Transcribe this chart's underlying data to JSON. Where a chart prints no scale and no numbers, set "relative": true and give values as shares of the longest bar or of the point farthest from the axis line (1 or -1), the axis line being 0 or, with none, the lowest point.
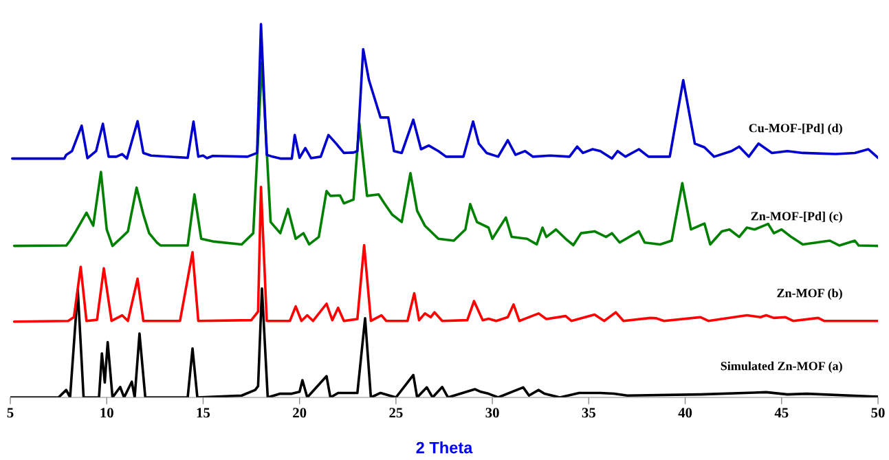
{
  "chart_data": {
    "type": "line",
    "xlabel": "2 Theta",
    "relative": true,
    "xlim": [
      5,
      50
    ],
    "xticks": [
      5,
      10,
      15,
      20,
      25,
      30,
      35,
      40,
      45,
      50
    ],
    "grid": false,
    "legend": false,
    "marker": "none",
    "line_style": "solid",
    "series": [
      {
        "name": "Simulated Zn-MOF (a)",
        "color": "#000000",
        "x": [
          5,
          7.5,
          7.9,
          8.1,
          8.5,
          8.8,
          9.6,
          9.75,
          9.9,
          10.05,
          10.3,
          10.7,
          10.9,
          11.3,
          11.45,
          11.7,
          12.0,
          14.2,
          14.45,
          14.7,
          17.0,
          17.7,
          17.85,
          18.05,
          18.35,
          19.0,
          19.6,
          20.0,
          20.15,
          20.4,
          21.4,
          21.6,
          22.0,
          22.3,
          23.0,
          23.4,
          23.7,
          24.2,
          25,
          25.9,
          26.1,
          26.6,
          26.9,
          27.4,
          27.7,
          29.1,
          29.4,
          29.8,
          30.3,
          31.6,
          31.9,
          32.4,
          32.7,
          33.5,
          34.5,
          35.6,
          36.3,
          37,
          40.8,
          43.6,
          44.2,
          45.3,
          46.3,
          50
        ],
        "values": [
          0,
          0,
          0.02,
          0,
          0.288,
          0,
          0,
          0.118,
          0.04,
          0.148,
          0,
          0.028,
          0,
          0.042,
          0,
          0.171,
          0,
          0,
          0.131,
          0,
          0.005,
          0.02,
          0.03,
          0.292,
          0,
          0.01,
          0.01,
          0.015,
          0.046,
          0,
          0.057,
          0,
          0.012,
          0.012,
          0.012,
          0.212,
          0,
          0.012,
          0,
          0.06,
          0,
          0.027,
          0,
          0.028,
          0,
          0.022,
          0.015,
          0.01,
          0,
          0.027,
          0.005,
          0.02,
          0.01,
          0,
          0.012,
          0.012,
          0.01,
          0.005,
          0.008,
          0.013,
          0.014,
          0.008,
          0.01,
          0.002
        ]
      },
      {
        "name": "Zn-MOF (b)",
        "color": "#ff0000",
        "x": [
          5.2,
          8.0,
          8.3,
          8.65,
          8.95,
          9.5,
          9.85,
          10.25,
          10.8,
          11.1,
          11.6,
          11.9,
          13.8,
          14.45,
          14.75,
          17.5,
          17.85,
          18.0,
          18.3,
          19.5,
          19.8,
          20.1,
          20.4,
          20.7,
          21.4,
          21.7,
          22.0,
          22.3,
          23.0,
          23.35,
          23.7,
          24.25,
          24.5,
          25.6,
          25.95,
          26.2,
          26.5,
          26.8,
          27.0,
          27.4,
          28.7,
          29.05,
          29.5,
          29.8,
          30.2,
          30.8,
          31.1,
          31.4,
          32.4,
          32.8,
          33.8,
          34.1,
          35.3,
          35.8,
          36.4,
          36.8,
          38.2,
          38.5,
          38.9,
          40.8,
          41.2,
          43.2,
          43.9,
          44.2,
          44.6,
          45.2,
          45.6,
          46.9,
          47.2,
          50
        ],
        "values": [
          0.203,
          0.205,
          0.215,
          0.35,
          0.205,
          0.208,
          0.346,
          0.205,
          0.22,
          0.205,
          0.318,
          0.205,
          0.205,
          0.389,
          0.205,
          0.207,
          0.23,
          0.564,
          0.205,
          0.205,
          0.244,
          0.205,
          0.22,
          0.205,
          0.251,
          0.207,
          0.24,
          0.205,
          0.21,
          0.408,
          0.205,
          0.22,
          0.205,
          0.205,
          0.279,
          0.207,
          0.225,
          0.215,
          0.228,
          0.205,
          0.207,
          0.258,
          0.207,
          0.211,
          0.205,
          0.215,
          0.249,
          0.205,
          0.225,
          0.21,
          0.218,
          0.205,
          0.222,
          0.205,
          0.228,
          0.205,
          0.213,
          0.212,
          0.205,
          0.215,
          0.205,
          0.22,
          0.215,
          0.22,
          0.213,
          0.215,
          0.205,
          0.213,
          0.205,
          0.205
        ]
      },
      {
        "name": "Zn-MOF-[Pd] (c)",
        "color": "#008000",
        "x": [
          5.2,
          7.9,
          8.1,
          8.4,
          8.95,
          9.3,
          9.7,
          10.0,
          10.3,
          10.8,
          11.1,
          11.55,
          11.9,
          12.2,
          12.6,
          12.8,
          14.2,
          14.55,
          14.9,
          15.5,
          17.0,
          17.6,
          18.05,
          18.5,
          19.0,
          19.4,
          19.8,
          20.2,
          20.5,
          21.0,
          21.4,
          21.6,
          22.1,
          22.3,
          22.8,
          23.1,
          23.5,
          24.1,
          24.4,
          24.8,
          25.3,
          25.75,
          26.1,
          26.5,
          27.2,
          28.0,
          28.6,
          28.85,
          29.2,
          29.8,
          30.0,
          30.7,
          31.0,
          31.8,
          32.3,
          32.6,
          32.8,
          33.3,
          33.8,
          34.2,
          34.6,
          35.3,
          35.9,
          36.2,
          36.6,
          37.6,
          37.9,
          38.7,
          39.3,
          39.85,
          40.3,
          41.0,
          41.3,
          41.9,
          42.3,
          42.8,
          43.2,
          43.6,
          44.3,
          44.6,
          45.0,
          45.5,
          46.1,
          47.5,
          48.0,
          48.8,
          49.0,
          50
        ],
        "values": [
          0.406,
          0.407,
          0.42,
          0.445,
          0.495,
          0.46,
          0.604,
          0.45,
          0.406,
          0.43,
          0.445,
          0.562,
          0.49,
          0.44,
          0.415,
          0.407,
          0.407,
          0.544,
          0.425,
          0.418,
          0.41,
          0.44,
          0.898,
          0.47,
          0.44,
          0.505,
          0.425,
          0.44,
          0.41,
          0.43,
          0.553,
          0.54,
          0.541,
          0.52,
          0.53,
          0.735,
          0.54,
          0.544,
          0.52,
          0.49,
          0.47,
          0.601,
          0.5,
          0.46,
          0.425,
          0.42,
          0.45,
          0.518,
          0.47,
          0.455,
          0.425,
          0.482,
          0.43,
          0.425,
          0.41,
          0.455,
          0.43,
          0.45,
          0.425,
          0.408,
          0.44,
          0.445,
          0.43,
          0.44,
          0.415,
          0.445,
          0.415,
          0.41,
          0.42,
          0.574,
          0.45,
          0.466,
          0.41,
          0.445,
          0.45,
          0.43,
          0.455,
          0.45,
          0.465,
          0.44,
          0.45,
          0.43,
          0.41,
          0.42,
          0.407,
          0.42,
          0.407,
          0.406
        ]
      },
      {
        "name": "Cu-MOF-[Pd] (d)",
        "color": "#0000cc",
        "x": [
          5.1,
          7.8,
          7.9,
          8.2,
          8.7,
          9.0,
          9.45,
          9.8,
          10.1,
          10.5,
          10.8,
          11.05,
          11.6,
          11.9,
          12.3,
          14.2,
          14.5,
          14.75,
          15.0,
          15.2,
          15.5,
          17.3,
          17.8,
          18.0,
          18.3,
          18.6,
          19.0,
          19.6,
          19.75,
          20.0,
          20.3,
          20.6,
          21.1,
          21.5,
          21.9,
          22.3,
          22.8,
          23.0,
          23.3,
          23.6,
          23.9,
          24.2,
          24.6,
          24.9,
          25.3,
          25.9,
          26.3,
          26.7,
          27.2,
          27.6,
          28.5,
          29.0,
          29.3,
          29.7,
          30.3,
          30.8,
          31.2,
          31.7,
          32.1,
          33.0,
          34.0,
          34.4,
          34.7,
          35.2,
          35.6,
          36.2,
          36.5,
          36.9,
          37.6,
          38.1,
          39.2,
          39.9,
          40.5,
          41.0,
          41.5,
          42.4,
          42.8,
          43.3,
          43.8,
          44.5,
          45.3,
          46.1,
          47.8,
          48.8,
          49.5,
          50
        ],
        "values": [
          0.64,
          0.64,
          0.65,
          0.66,
          0.728,
          0.641,
          0.66,
          0.733,
          0.645,
          0.645,
          0.652,
          0.64,
          0.74,
          0.655,
          0.648,
          0.642,
          0.739,
          0.645,
          0.648,
          0.641,
          0.647,
          0.645,
          0.655,
          1.0,
          0.65,
          0.645,
          0.64,
          0.64,
          0.703,
          0.642,
          0.668,
          0.641,
          0.645,
          0.703,
          0.68,
          0.655,
          0.656,
          0.66,
          0.933,
          0.85,
          0.8,
          0.75,
          0.75,
          0.66,
          0.655,
          0.744,
          0.665,
          0.675,
          0.66,
          0.645,
          0.645,
          0.739,
          0.68,
          0.655,
          0.645,
          0.689,
          0.65,
          0.66,
          0.645,
          0.648,
          0.645,
          0.672,
          0.655,
          0.665,
          0.66,
          0.64,
          0.66,
          0.645,
          0.665,
          0.645,
          0.645,
          0.85,
          0.68,
          0.67,
          0.645,
          0.66,
          0.672,
          0.645,
          0.68,
          0.655,
          0.66,
          0.655,
          0.652,
          0.655,
          0.665,
          0.642
        ]
      }
    ]
  }
}
